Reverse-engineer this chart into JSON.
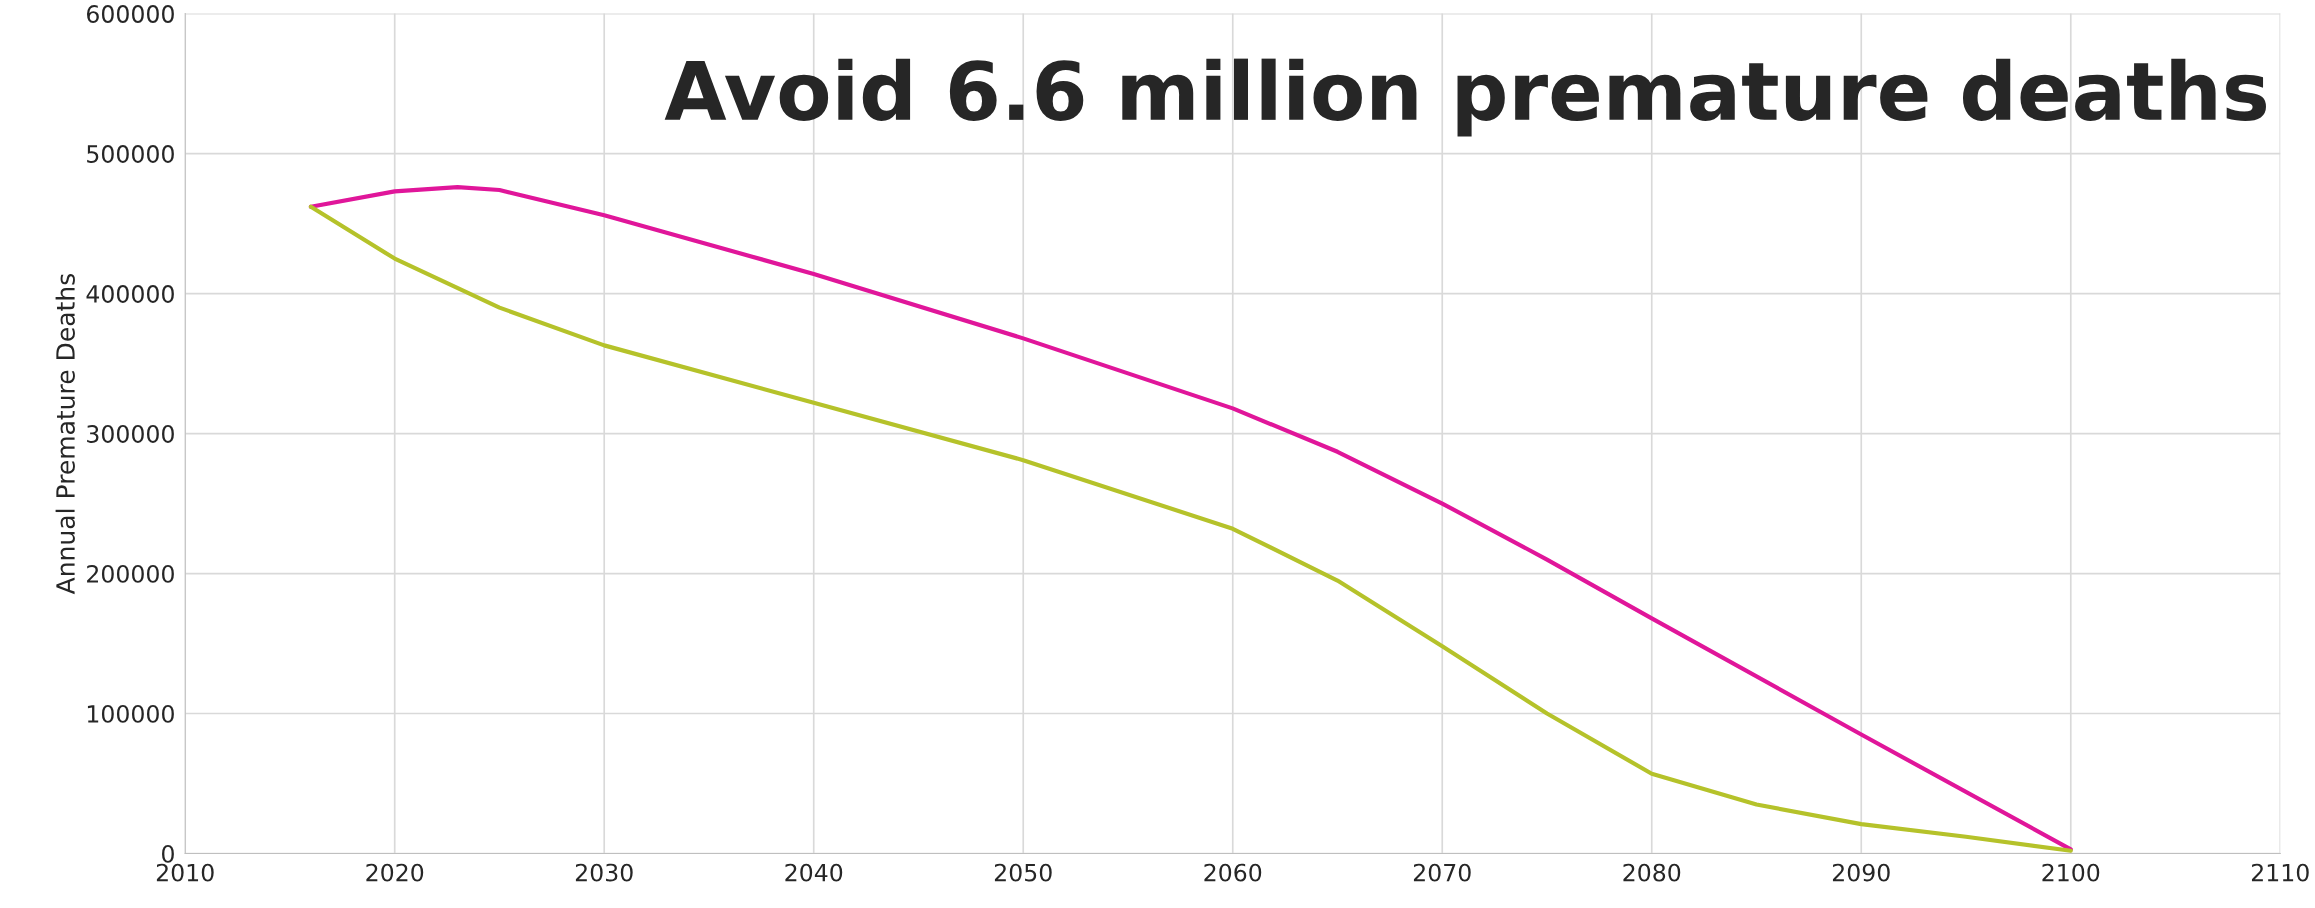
{
  "chart_data": {
    "type": "line",
    "ylabel": "Annual Premature Deaths",
    "annotations": [
      "Avoid 6.6 million premature deaths"
    ],
    "series": [
      {
        "color": "#e0169a",
        "x": [
          2016,
          2020,
          2023,
          2025,
          2030,
          2040,
          2050,
          2060,
          2065,
          2070,
          2075,
          2080,
          2090,
          2100
        ],
        "values": [
          462000,
          473000,
          476000,
          474000,
          456000,
          414000,
          368000,
          318000,
          287000,
          250000,
          210000,
          168000,
          85000,
          3000
        ]
      },
      {
        "color": "#b5c22a",
        "x": [
          2016,
          2020,
          2025,
          2030,
          2040,
          2050,
          2060,
          2065,
          2070,
          2075,
          2080,
          2085,
          2090,
          2095,
          2100
        ],
        "values": [
          462000,
          425000,
          390000,
          363000,
          322000,
          281000,
          232000,
          195000,
          148000,
          100000,
          57000,
          35000,
          21000,
          12000,
          2000
        ]
      }
    ],
    "xlim": [
      2010,
      2110
    ],
    "xticks": [
      2010,
      2020,
      2030,
      2040,
      2050,
      2060,
      2070,
      2080,
      2090,
      2100,
      2110
    ],
    "ylim": [
      0,
      600000
    ],
    "yticks": [
      0,
      100000,
      200000,
      300000,
      400000,
      500000,
      600000
    ],
    "grid": true,
    "marker": "none",
    "line_style": "solid"
  }
}
